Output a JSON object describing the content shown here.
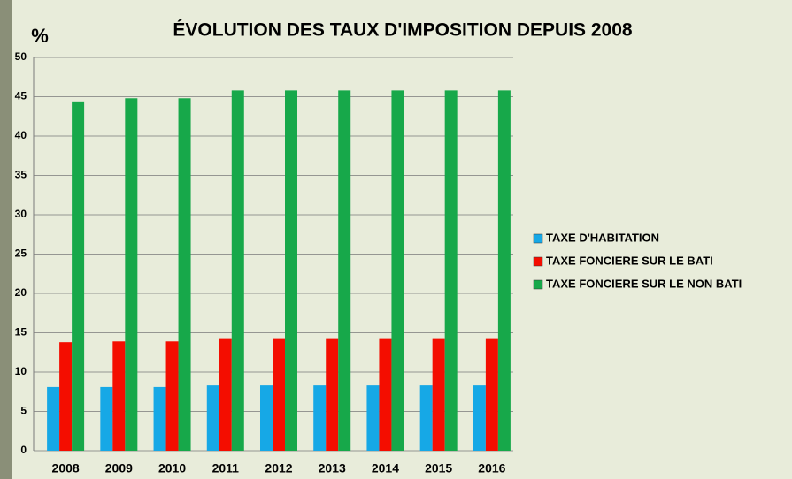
{
  "chart_data": {
    "type": "bar",
    "title": "ÉVOLUTION DES TAUX D'IMPOSITION DEPUIS 2008",
    "y_label": "%",
    "categories": [
      "2008",
      "2009",
      "2010",
      "2011",
      "2012",
      "2013",
      "2014",
      "2015",
      "2016"
    ],
    "series": [
      {
        "name": "TAXE D'HABITATION",
        "color": "#16a8e6",
        "values": [
          8.1,
          8.1,
          8.1,
          8.3,
          8.3,
          8.3,
          8.3,
          8.3,
          8.3
        ]
      },
      {
        "name": "TAXE FONCIERE SUR LE BATI",
        "color": "#f40d00",
        "values": [
          13.8,
          13.9,
          13.9,
          14.2,
          14.2,
          14.2,
          14.2,
          14.2,
          14.2
        ]
      },
      {
        "name": "TAXE FONCIERE SUR LE NON BATI",
        "color": "#17a84a",
        "values": [
          44.4,
          44.8,
          44.8,
          45.8,
          45.8,
          45.8,
          45.8,
          45.8,
          45.8
        ]
      }
    ],
    "ylim": [
      0,
      50
    ],
    "yticks": [
      0,
      5,
      10,
      15,
      20,
      25,
      30,
      35,
      40,
      45,
      50
    ],
    "grid": true,
    "legend": "right"
  }
}
